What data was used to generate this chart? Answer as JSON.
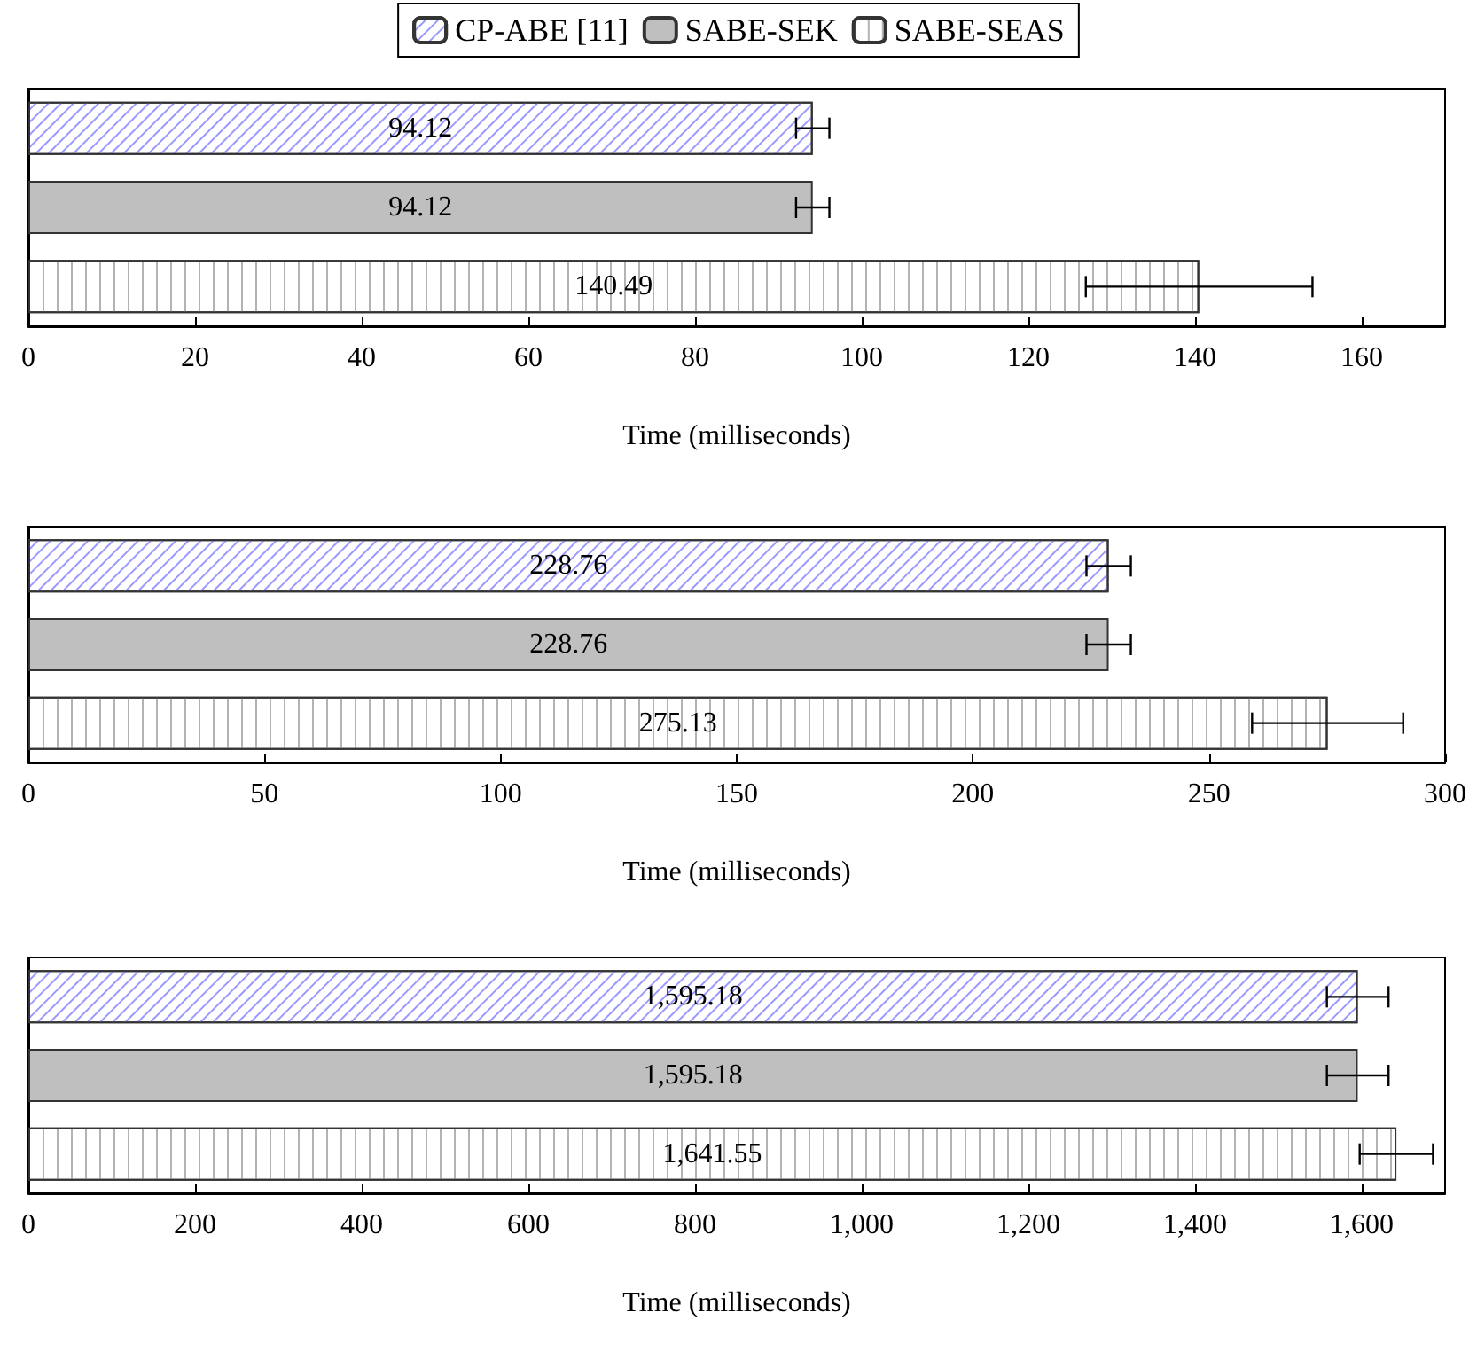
{
  "chart_data": [
    {
      "type": "bar",
      "orientation": "horizontal",
      "categories": [
        null,
        null,
        null
      ],
      "xlabel": "Time (milliseconds)",
      "xlim": [
        0,
        170
      ],
      "xticks": [
        0,
        20,
        40,
        60,
        80,
        100,
        120,
        140,
        160
      ],
      "legend": "top",
      "grid": false,
      "series": [
        {
          "name": "CP-ABE [11]",
          "color": "#ffffff",
          "values": [
            94.12,
            null,
            null
          ],
          "errors": [
            2,
            null,
            null
          ],
          "value_labels": [
            "94.12",
            null,
            null
          ]
        },
        {
          "name": "SABE-SEK",
          "color": "#bfbfbf",
          "values": [
            null,
            94.12,
            null
          ],
          "errors": [
            null,
            2,
            null
          ],
          "value_labels": [
            null,
            "94.12",
            null
          ]
        },
        {
          "name": "SABE-SEAS",
          "color": "#ffffff",
          "values": [
            null,
            null,
            140.49
          ],
          "errors": [
            null,
            null,
            13.6
          ],
          "value_labels": [
            null,
            null,
            "140.49"
          ]
        }
      ]
    },
    {
      "type": "bar",
      "orientation": "horizontal",
      "categories": [
        null,
        null,
        null
      ],
      "xlabel": "Time (milliseconds)",
      "xlim": [
        0,
        300
      ],
      "xticks": [
        0,
        50,
        100,
        150,
        200,
        250,
        300
      ],
      "grid": false,
      "series": [
        {
          "color": "#ffffff",
          "values": [
            228.76,
            null,
            null
          ],
          "errors": [
            4.7,
            null,
            null
          ],
          "value_labels": [
            "228.76",
            null,
            null
          ]
        },
        {
          "color": "#bfbfbf",
          "values": [
            null,
            228.76,
            null
          ],
          "errors": [
            null,
            4.7,
            null
          ],
          "value_labels": [
            null,
            "228.76",
            null
          ]
        },
        {
          "color": "#ffffff",
          "values": [
            null,
            null,
            275.13
          ],
          "errors": [
            null,
            null,
            16
          ],
          "value_labels": [
            null,
            null,
            "275.13"
          ]
        }
      ]
    },
    {
      "type": "bar",
      "orientation": "horizontal",
      "categories": [
        null,
        null,
        null
      ],
      "xlabel": "Time (milliseconds)",
      "xlim": [
        0,
        1700
      ],
      "xticks": [
        0,
        200,
        400,
        600,
        800,
        {
          "value": 1000,
          "label": "1,000"
        },
        {
          "value": 1200,
          "label": "1,200"
        },
        {
          "value": 1400,
          "label": "1,400"
        },
        {
          "value": 1600,
          "label": "1,600"
        }
      ],
      "grid": false,
      "series": [
        {
          "color": "#ffffff",
          "values": [
            1595.18,
            null,
            null
          ],
          "errors": [
            37,
            null,
            null
          ],
          "value_labels": [
            "1,595.18",
            null,
            null
          ]
        },
        {
          "color": "#bfbfbf",
          "values": [
            null,
            1595.18,
            null
          ],
          "errors": [
            null,
            37,
            null
          ],
          "value_labels": [
            null,
            "1,595.18",
            null
          ]
        },
        {
          "color": "#ffffff",
          "values": [
            null,
            null,
            1641.55
          ],
          "errors": [
            null,
            null,
            44
          ],
          "value_labels": [
            null,
            null,
            "1,641.55"
          ]
        }
      ]
    }
  ]
}
